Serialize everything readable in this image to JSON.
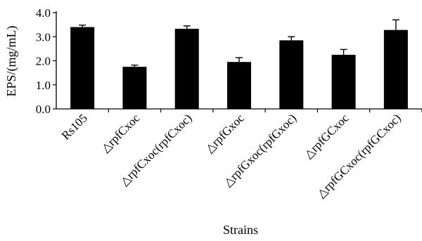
{
  "chart_data": {
    "type": "bar",
    "title": "",
    "xlabel": "Strains",
    "ylabel": "EPS/(mg/mL)",
    "ylim": [
      0.0,
      4.0
    ],
    "yticks": [
      "0.0",
      "1.0",
      "2.0",
      "3.0",
      "4.0"
    ],
    "grid": false,
    "categories": [
      "Rs105",
      "△rpfCxoc",
      "△rpfCxoc(rpfCxoc)",
      "△rpfGxoc",
      "△rpfGxoc(rpfGxoc)",
      "△rpfGCxoc",
      "△rpfGCxoc(rpfGCxoc)"
    ],
    "values": [
      3.4,
      1.75,
      3.33,
      1.95,
      2.85,
      2.25,
      3.28
    ],
    "errors": [
      0.08,
      0.07,
      0.12,
      0.18,
      0.15,
      0.22,
      0.42
    ],
    "bar_color": "#000000"
  }
}
